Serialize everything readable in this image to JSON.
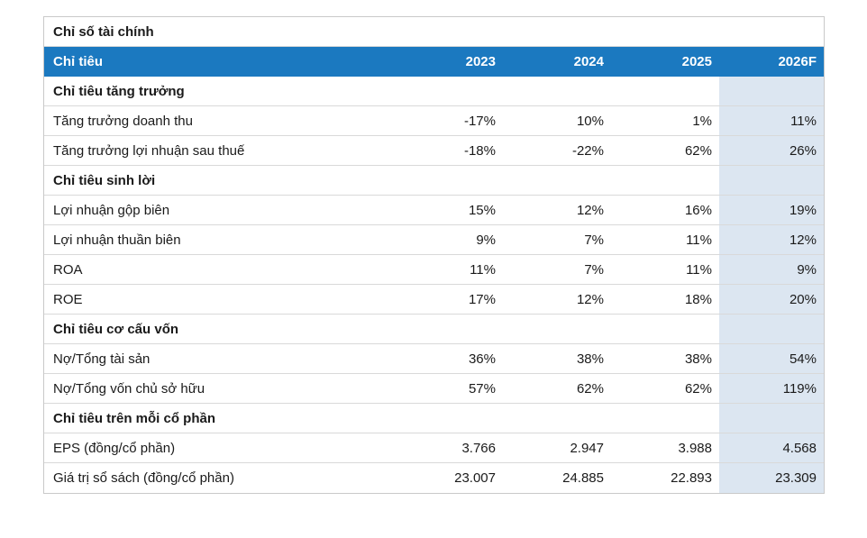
{
  "table": {
    "title": "Chỉ số tài chính",
    "header": {
      "label": "Chỉ tiêu",
      "years": [
        "2023",
        "2024",
        "2025",
        "2026F"
      ]
    },
    "colors": {
      "header_bg": "#1b79c0",
      "header_text": "#ffffff",
      "forecast_column_bg": "#dce6f1",
      "grid_border": "#d9d9d9",
      "text": "#1a1a1a"
    },
    "rows": [
      {
        "type": "section",
        "label": "Chỉ tiêu tăng trưởng"
      },
      {
        "type": "data",
        "label": "Tăng trưởng doanh thu",
        "values": [
          "-17%",
          "10%",
          "1%",
          "11%"
        ]
      },
      {
        "type": "data",
        "label": "Tăng trưởng lợi nhuận sau thuế",
        "values": [
          "-18%",
          "-22%",
          "62%",
          "26%"
        ]
      },
      {
        "type": "section",
        "label": "Chỉ tiêu sinh lời"
      },
      {
        "type": "data",
        "label": "Lợi nhuận gộp biên",
        "values": [
          "15%",
          "12%",
          "16%",
          "19%"
        ]
      },
      {
        "type": "data",
        "label": "Lợi nhuận thuần biên",
        "values": [
          "9%",
          "7%",
          "11%",
          "12%"
        ]
      },
      {
        "type": "data",
        "label": "ROA",
        "values": [
          "11%",
          "7%",
          "11%",
          "9%"
        ]
      },
      {
        "type": "data",
        "label": "ROE",
        "values": [
          "17%",
          "12%",
          "18%",
          "20%"
        ]
      },
      {
        "type": "section",
        "label": "Chỉ tiêu cơ cấu vốn"
      },
      {
        "type": "data",
        "label": "Nợ/Tổng tài sản",
        "values": [
          "36%",
          "38%",
          "38%",
          "54%"
        ]
      },
      {
        "type": "data",
        "label": "Nợ/Tổng vốn chủ sở hữu",
        "values": [
          "57%",
          "62%",
          "62%",
          "119%"
        ]
      },
      {
        "type": "section",
        "label": "Chỉ tiêu trên mỗi cổ phần"
      },
      {
        "type": "data",
        "label": "EPS (đồng/cổ phần)",
        "values": [
          "3.766",
          "2.947",
          "3.988",
          "4.568"
        ]
      },
      {
        "type": "data",
        "label": "Giá trị sổ sách (đồng/cổ phần)",
        "values": [
          "23.007",
          "24.885",
          "22.893",
          "23.309"
        ]
      }
    ]
  }
}
